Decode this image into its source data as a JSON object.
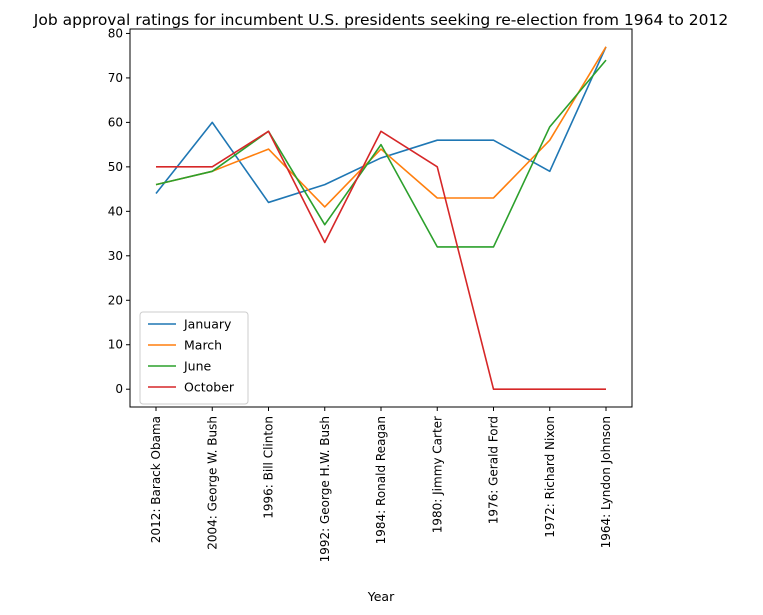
{
  "chart_data": {
    "type": "line",
    "title": "Job approval ratings for incumbent U.S. presidents seeking re-election from 1964 to 2012",
    "xlabel": "Year",
    "ylabel": "",
    "categories": [
      "2012: Barack Obama",
      "2004: George W. Bush",
      "1996: Bill Clinton",
      "1992: George H.W. Bush",
      "1984: Ronald Reagan",
      "1980: Jimmy Carter",
      "1976: Gerald Ford",
      "1972: Richard Nixon",
      "1964: Lyndon Johnson"
    ],
    "ylim": [
      -4,
      81
    ],
    "yticks": [
      0,
      10,
      20,
      30,
      40,
      50,
      60,
      70,
      80
    ],
    "grid": false,
    "legend_position": "lower-left",
    "series": [
      {
        "name": "January",
        "color": "#1f77b4",
        "values": [
          44,
          60,
          42,
          46,
          52,
          56,
          56,
          49,
          77
        ]
      },
      {
        "name": "March",
        "color": "#ff7f0e",
        "values": [
          46,
          49,
          54,
          41,
          54,
          43,
          43,
          56,
          77
        ]
      },
      {
        "name": "June",
        "color": "#2ca02c",
        "values": [
          46,
          49,
          58,
          37,
          55,
          32,
          32,
          59,
          74
        ]
      },
      {
        "name": "October",
        "color": "#d62728",
        "values": [
          50,
          50,
          58,
          33,
          58,
          50,
          0,
          0,
          0
        ]
      }
    ]
  }
}
